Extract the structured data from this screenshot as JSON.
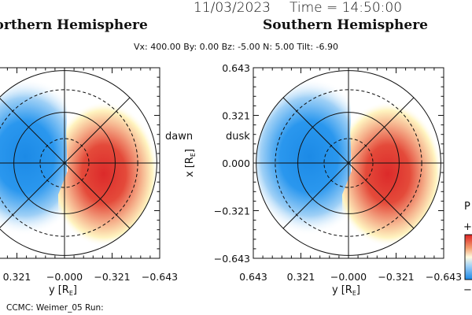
{
  "header": {
    "date": "11/03/2023",
    "time": "Time = 14:50:00",
    "parameters": "Vx: 400.00 By: 0.00 Bz: -5.00 N: 5.00 Tilt: -6.90"
  },
  "footer": "CCMC: Weimer_05 Run:",
  "colors": {
    "positive": "#e03030",
    "negative": "#1e8ee8",
    "mid": "#fff8c0"
  },
  "colorbar": {
    "label": "P",
    "plus": "+",
    "minus": "−"
  },
  "chart_data": [
    {
      "type": "heatmap",
      "title": "Northern Hemisphere",
      "xlabel": "y [RE]",
      "xlabel_text": "y",
      "xlabel_unit": "[R",
      "xlabel_sub": "E",
      "xlabel_close": "]",
      "side_label": "dawn",
      "xticks": [
        "0.321",
        "−0.000",
        "−0.321",
        "−0.643"
      ],
      "axis_range": [
        0.643,
        -0.643
      ],
      "circles_solid": [
        0.353,
        0.643
      ],
      "circles_dashed": [
        0.17,
        0.51
      ],
      "features": [
        {
          "sign": "negative",
          "location": "dawn side"
        },
        {
          "sign": "positive",
          "location": "dusk side"
        }
      ]
    },
    {
      "type": "heatmap",
      "title": "Southern Hemisphere",
      "xlabel": "y [RE]",
      "xlabel_text": "y",
      "xlabel_unit": "[R",
      "xlabel_sub": "E",
      "xlabel_close": "]",
      "ylabel_text": "x",
      "ylabel_unit": "[R",
      "ylabel_sub": "E",
      "ylabel_close": "]",
      "side_label": "dusk",
      "xticks": [
        "0.643",
        "0.321",
        "−0.000",
        "−0.321",
        "−0.643"
      ],
      "yticks": [
        "0.643",
        "0.321",
        "0.000",
        "−0.321",
        "−0.643"
      ],
      "axis_range": [
        0.643,
        -0.643
      ],
      "circles_solid": [
        0.353,
        0.643
      ],
      "circles_dashed": [
        0.17,
        0.51
      ],
      "features": [
        {
          "sign": "negative",
          "location": "left of center"
        },
        {
          "sign": "positive",
          "location": "right of center"
        }
      ]
    }
  ]
}
